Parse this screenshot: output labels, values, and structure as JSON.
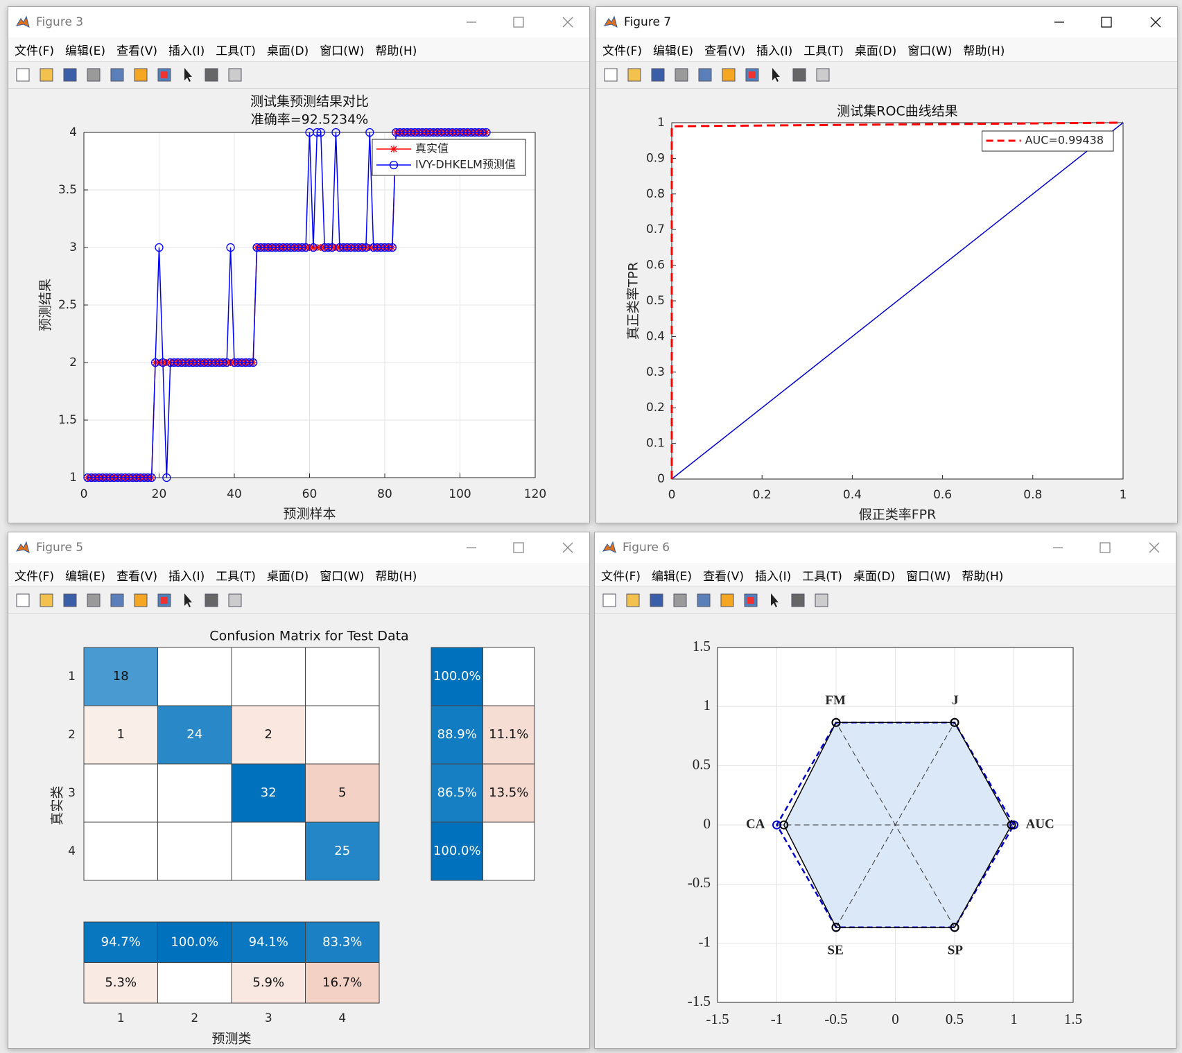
{
  "menu": [
    "文件(F)",
    "编辑(E)",
    "查看(V)",
    "插入(I)",
    "工具(T)",
    "桌面(D)",
    "窗口(W)",
    "帮助(H)"
  ],
  "windows": [
    {
      "title": "Figure 3",
      "chart": {
        "type": "line",
        "title": "测试集预测结果对比",
        "subtitle": "准确率=92.5234%",
        "xlabel": "预测样本",
        "ylabel": "预测结果",
        "x": [
          1,
          2,
          3,
          4,
          5,
          6,
          7,
          8,
          9,
          10,
          11,
          12,
          13,
          14,
          15,
          16,
          17,
          18,
          19,
          20,
          21,
          22,
          23,
          24,
          25,
          26,
          27,
          28,
          29,
          30,
          31,
          32,
          33,
          34,
          35,
          36,
          37,
          38,
          39,
          40,
          41,
          42,
          43,
          44,
          45,
          46,
          47,
          48,
          49,
          50,
          51,
          52,
          53,
          54,
          55,
          56,
          57,
          58,
          59,
          60,
          61,
          62,
          63,
          64,
          65,
          66,
          67,
          68,
          69,
          70,
          71,
          72,
          73,
          74,
          75,
          76,
          77,
          78,
          79,
          80,
          81,
          82,
          83,
          84,
          85,
          86,
          87,
          88,
          89,
          90,
          91,
          92,
          93,
          94,
          95,
          96,
          97,
          98,
          99,
          100,
          101,
          102,
          103,
          104,
          105,
          106,
          107
        ],
        "series": [
          {
            "name": "真实值",
            "color": "#ff0000",
            "marker": "star",
            "values": [
              1,
              1,
              1,
              1,
              1,
              1,
              1,
              1,
              1,
              1,
              1,
              1,
              1,
              1,
              1,
              1,
              1,
              1,
              2,
              2,
              2,
              2,
              2,
              2,
              2,
              2,
              2,
              2,
              2,
              2,
              2,
              2,
              2,
              2,
              2,
              2,
              2,
              2,
              2,
              2,
              2,
              2,
              2,
              2,
              2,
              3,
              3,
              3,
              3,
              3,
              3,
              3,
              3,
              3,
              3,
              3,
              3,
              3,
              3,
              3,
              3,
              3,
              3,
              3,
              3,
              3,
              3,
              3,
              3,
              3,
              3,
              3,
              3,
              3,
              3,
              3,
              3,
              3,
              3,
              3,
              3,
              3,
              4,
              4,
              4,
              4,
              4,
              4,
              4,
              4,
              4,
              4,
              4,
              4,
              4,
              4,
              4,
              4,
              4,
              4,
              4,
              4,
              4,
              4,
              4,
              4,
              4
            ]
          },
          {
            "name": "IVY-DHKELM预测值",
            "color": "#0000ff",
            "marker": "circle",
            "values": [
              1,
              1,
              1,
              1,
              1,
              1,
              1,
              1,
              1,
              1,
              1,
              1,
              1,
              1,
              1,
              1,
              1,
              1,
              2,
              3,
              2,
              1,
              2,
              2,
              2,
              2,
              2,
              2,
              2,
              2,
              2,
              2,
              2,
              2,
              2,
              2,
              2,
              2,
              3,
              2,
              2,
              2,
              2,
              2,
              2,
              3,
              3,
              3,
              3,
              3,
              3,
              3,
              3,
              3,
              3,
              3,
              3,
              3,
              3,
              4,
              3,
              4,
              4,
              3,
              3,
              3,
              4,
              3,
              3,
              3,
              3,
              3,
              3,
              3,
              3,
              4,
              3,
              3,
              3,
              3,
              3,
              3,
              4,
              4,
              4,
              4,
              4,
              4,
              4,
              4,
              4,
              4,
              4,
              4,
              4,
              4,
              4,
              4,
              4,
              4,
              4,
              4,
              4,
              4,
              4,
              4,
              4
            ]
          }
        ],
        "xlim": [
          0,
          120
        ],
        "xticks": [
          0,
          20,
          40,
          60,
          80,
          100,
          120
        ],
        "ylim": [
          1,
          4
        ],
        "yticks": [
          1,
          1.5,
          2,
          2.5,
          3,
          3.5,
          4
        ],
        "grid": true,
        "legend": "northeast"
      }
    },
    {
      "title": "Figure 7",
      "chart": {
        "type": "line",
        "title": "测试集ROC曲线结果",
        "xlabel": "假正类率FPR",
        "ylabel": "真正类率TPR",
        "series": [
          {
            "color": "#0000cc",
            "x": [
              0,
              1
            ],
            "values": [
              0,
              1
            ]
          },
          {
            "name": "AUC=0.99438",
            "color": "#ff0000",
            "dash": true,
            "x": [
              0,
              0,
              1
            ],
            "values": [
              0,
              0.99,
              1
            ]
          }
        ],
        "xlim": [
          0,
          1
        ],
        "xticks": [
          0,
          0.2,
          0.4,
          0.6,
          0.8,
          1
        ],
        "ylim": [
          0,
          1
        ],
        "yticks": [
          0,
          0.1,
          0.2,
          0.3,
          0.4,
          0.5,
          0.6,
          0.7,
          0.8,
          0.9,
          1
        ],
        "grid": false,
        "legend": "northeast"
      }
    },
    {
      "title": "Figure 5",
      "chart": {
        "type": "confusion",
        "title": "Confusion Matrix for Test Data",
        "xlabel": "预测类",
        "ylabel": "真实类",
        "categories": [
          "1",
          "2",
          "3",
          "4"
        ],
        "matrix": [
          [
            18,
            null,
            null,
            null
          ],
          [
            1,
            24,
            2,
            null
          ],
          [
            null,
            null,
            32,
            5
          ],
          [
            null,
            null,
            null,
            25
          ]
        ],
        "row_summary": {
          "values": [
            [
              100,
              null
            ],
            [
              88.9,
              11.1
            ],
            [
              86.5,
              13.5
            ],
            [
              100,
              null
            ]
          ],
          "value_labels": [
            [
              "100.0%",
              null
            ],
            [
              "88.9%",
              "11.1%"
            ],
            [
              "86.5%",
              "13.5%"
            ],
            [
              "100.0%",
              null
            ]
          ]
        },
        "column_summary": {
          "values": [
            [
              94.7,
              100,
              94.1,
              83.3
            ],
            [
              5.3,
              null,
              5.9,
              16.7
            ]
          ],
          "value_labels": [
            [
              "94.7%",
              "100.0%",
              "94.1%",
              "83.3%"
            ],
            [
              "5.3%",
              null,
              "5.9%",
              "16.7%"
            ]
          ]
        }
      }
    },
    {
      "title": "Figure 6",
      "chart": {
        "type": "radar",
        "labels": [
          "AUC",
          "J",
          "FM",
          "CA",
          "SE",
          "SP"
        ],
        "series": [
          {
            "color": "#0000cc",
            "dash": true,
            "values": [
              1,
              1,
              1,
              1,
              1,
              1
            ]
          },
          {
            "color": "#000000",
            "fill": "#dbe8f7",
            "values": [
              0.98,
              1,
              1,
              0.94,
              1,
              1
            ]
          }
        ],
        "xlim": [
          -1.5,
          1.5
        ],
        "xticks": [
          -1.5,
          -1,
          -0.5,
          0,
          0.5,
          1,
          1.5
        ],
        "ylim": [
          -1.5,
          1.5
        ],
        "yticks": [
          -1.5,
          -1,
          -0.5,
          0,
          0.5,
          1,
          1.5
        ],
        "grid": true
      }
    }
  ]
}
